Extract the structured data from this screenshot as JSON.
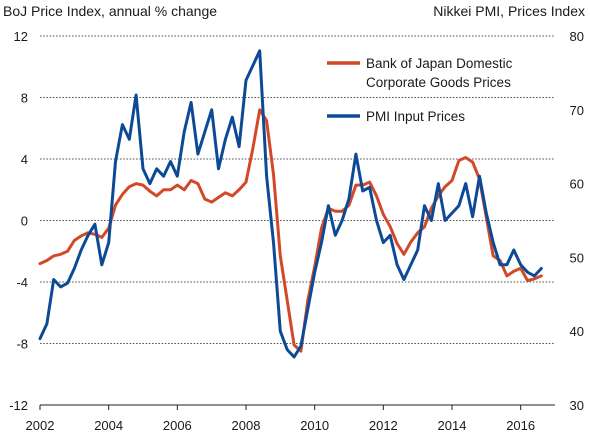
{
  "chart_data": {
    "type": "line",
    "left_axis_title": "BoJ Price Index, annual % change",
    "right_axis_title": "Nikkei PMI, Prices Index",
    "x_ticks": [
      "2002",
      "2004",
      "2006",
      "2008",
      "2010",
      "2012",
      "2014",
      "2016"
    ],
    "xlim": [
      2002.0,
      2017.0
    ],
    "y_left": {
      "ticks": [
        "12",
        "8",
        "4",
        "0",
        "-4",
        "-8",
        "-12"
      ],
      "ylim": [
        -12,
        12
      ]
    },
    "y_right": {
      "ticks": [
        "80",
        "70",
        "60",
        "50",
        "40",
        "30"
      ],
      "ylim": [
        30,
        80
      ]
    },
    "grid": "horizontal dotted",
    "legend": "top-right",
    "series": [
      {
        "name": "Bank of Japan Domestic Corporate Goods Prices",
        "name_lines": [
          "Bank of Japan Domestic",
          "Corporate Goods Prices"
        ],
        "axis": "left",
        "color": "#d2492a",
        "x": [
          2002.0,
          2002.2,
          2002.4,
          2002.6,
          2002.8,
          2003.0,
          2003.2,
          2003.4,
          2003.6,
          2003.8,
          2004.0,
          2004.2,
          2004.4,
          2004.6,
          2004.8,
          2005.0,
          2005.2,
          2005.4,
          2005.6,
          2005.8,
          2006.0,
          2006.2,
          2006.4,
          2006.6,
          2006.8,
          2007.0,
          2007.2,
          2007.4,
          2007.6,
          2007.8,
          2008.0,
          2008.2,
          2008.4,
          2008.6,
          2008.8,
          2009.0,
          2009.2,
          2009.4,
          2009.6,
          2009.8,
          2010.0,
          2010.2,
          2010.4,
          2010.6,
          2010.8,
          2011.0,
          2011.2,
          2011.4,
          2011.6,
          2011.8,
          2012.0,
          2012.2,
          2012.4,
          2012.6,
          2012.8,
          2013.0,
          2013.2,
          2013.4,
          2013.6,
          2013.8,
          2014.0,
          2014.2,
          2014.4,
          2014.6,
          2014.8,
          2015.0,
          2015.2,
          2015.4,
          2015.6,
          2015.8,
          2016.0,
          2016.2,
          2016.4,
          2016.6
        ],
        "values": [
          -2.8,
          -2.6,
          -2.3,
          -2.2,
          -2.0,
          -1.3,
          -1.0,
          -0.8,
          -0.9,
          -1.1,
          -0.5,
          1.0,
          1.7,
          2.2,
          2.4,
          2.3,
          1.9,
          1.6,
          2.0,
          2.0,
          2.3,
          2.0,
          2.6,
          2.4,
          1.4,
          1.2,
          1.5,
          1.8,
          1.6,
          2.0,
          2.5,
          4.7,
          7.2,
          6.5,
          3.0,
          -2.3,
          -5.2,
          -8.1,
          -8.5,
          -5.2,
          -3.0,
          -0.5,
          0.8,
          0.6,
          0.6,
          1.0,
          2.3,
          2.3,
          2.5,
          1.6,
          0.4,
          -0.4,
          -1.5,
          -2.2,
          -1.4,
          -0.8,
          -0.4,
          0.8,
          1.6,
          2.2,
          2.6,
          3.9,
          4.1,
          3.8,
          2.7,
          0.2,
          -2.3,
          -2.6,
          -3.6,
          -3.3,
          -3.1,
          -3.9,
          -3.8,
          -3.6
        ]
      },
      {
        "name": "PMI Input Prices",
        "axis": "right",
        "color": "#0d4a96",
        "x": [
          2002.0,
          2002.2,
          2002.4,
          2002.6,
          2002.8,
          2003.0,
          2003.2,
          2003.4,
          2003.6,
          2003.8,
          2004.0,
          2004.2,
          2004.4,
          2004.6,
          2004.8,
          2005.0,
          2005.2,
          2005.4,
          2005.6,
          2005.8,
          2006.0,
          2006.2,
          2006.4,
          2006.6,
          2006.8,
          2007.0,
          2007.2,
          2007.4,
          2007.6,
          2007.8,
          2008.0,
          2008.2,
          2008.4,
          2008.6,
          2008.8,
          2009.0,
          2009.2,
          2009.4,
          2009.6,
          2009.8,
          2010.0,
          2010.2,
          2010.4,
          2010.6,
          2010.8,
          2011.0,
          2011.2,
          2011.4,
          2011.6,
          2011.8,
          2012.0,
          2012.2,
          2012.4,
          2012.6,
          2012.8,
          2013.0,
          2013.2,
          2013.4,
          2013.6,
          2013.8,
          2014.0,
          2014.2,
          2014.4,
          2014.6,
          2014.8,
          2015.0,
          2015.2,
          2015.4,
          2015.6,
          2015.8,
          2016.0,
          2016.2,
          2016.4,
          2016.6
        ],
        "values": [
          39.0,
          41.0,
          47.0,
          46.0,
          46.5,
          48.5,
          51.0,
          53.0,
          54.5,
          49.0,
          52.0,
          63.0,
          68.0,
          66.0,
          72.0,
          62.0,
          60.0,
          62.0,
          61.0,
          63.0,
          61.0,
          67.0,
          71.0,
          64.0,
          67.0,
          70.0,
          62.0,
          66.0,
          69.0,
          65.0,
          74.0,
          76.0,
          78.0,
          61.0,
          52.0,
          40.0,
          37.5,
          36.5,
          38.0,
          43.0,
          48.0,
          52.0,
          57.0,
          53.0,
          55.0,
          58.0,
          64.0,
          59.0,
          59.5,
          55.0,
          52.0,
          53.0,
          49.0,
          47.0,
          49.0,
          51.0,
          57.0,
          55.0,
          60.0,
          55.0,
          56.0,
          57.0,
          60.0,
          55.5,
          61.0,
          56.0,
          52.0,
          49.0,
          49.0,
          51.0,
          49.0,
          48.0,
          47.5,
          48.5
        ]
      }
    ]
  }
}
